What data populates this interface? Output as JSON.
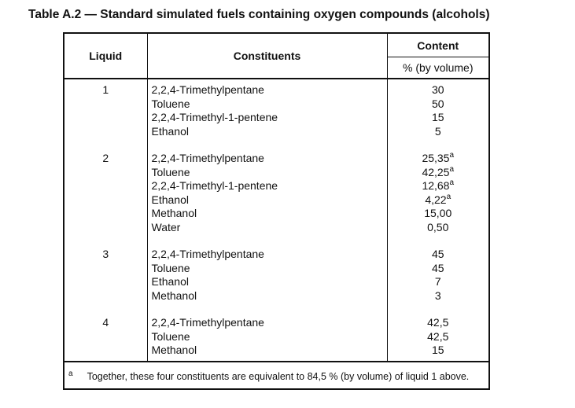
{
  "title": "Table A.2 — Standard simulated fuels containing oxygen compounds (alcohols)",
  "headers": {
    "liquid": "Liquid",
    "constituents": "Constituents",
    "content": "Content",
    "content_unit": "% (by volume)"
  },
  "rows": [
    {
      "liquid": "1",
      "items": [
        {
          "name": "2,2,4-Trimethylpentane",
          "value": "30",
          "note": ""
        },
        {
          "name": "Toluene",
          "value": "50",
          "note": ""
        },
        {
          "name": "2,2,4-Trimethyl-1-pentene",
          "value": "15",
          "note": ""
        },
        {
          "name": "Ethanol",
          "value": "5",
          "note": ""
        }
      ]
    },
    {
      "liquid": "2",
      "items": [
        {
          "name": "2,2,4-Trimethylpentane",
          "value": "25,35",
          "note": "a"
        },
        {
          "name": "Toluene",
          "value": "42,25",
          "note": "a"
        },
        {
          "name": "2,2,4-Trimethyl-1-pentene",
          "value": "12,68",
          "note": "a"
        },
        {
          "name": "Ethanol",
          "value": "4,22",
          "note": "a"
        },
        {
          "name": "Methanol",
          "value": "15,00",
          "note": ""
        },
        {
          "name": "Water",
          "value": "0,50",
          "note": ""
        }
      ]
    },
    {
      "liquid": "3",
      "items": [
        {
          "name": "2,2,4-Trimethylpentane",
          "value": "45",
          "note": ""
        },
        {
          "name": "Toluene",
          "value": "45",
          "note": ""
        },
        {
          "name": "Ethanol",
          "value": "7",
          "note": ""
        },
        {
          "name": "Methanol",
          "value": "3",
          "note": ""
        }
      ]
    },
    {
      "liquid": "4",
      "items": [
        {
          "name": "2,2,4-Trimethylpentane",
          "value": "42,5",
          "note": ""
        },
        {
          "name": "Toluene",
          "value": "42,5",
          "note": ""
        },
        {
          "name": "Methanol",
          "value": "15",
          "note": ""
        }
      ]
    }
  ],
  "footnote": {
    "mark": "a",
    "text": "Together, these four constituents are equivalent to 84,5 % (by volume) of liquid 1 above."
  }
}
